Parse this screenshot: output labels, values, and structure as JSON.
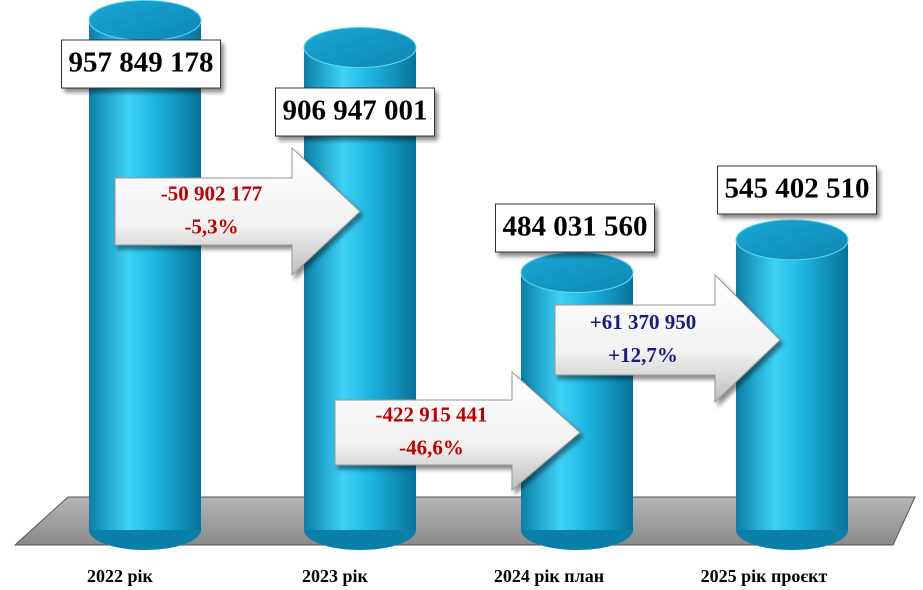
{
  "chart_data": {
    "type": "bar3d",
    "categories": [
      "2022 рік",
      "2023 рік",
      "2024 рік план",
      "2025 рік проєкт"
    ],
    "values": [
      957849178,
      906947001,
      484031560,
      545402510
    ],
    "value_labels": [
      "957 849 178",
      "906 947 001",
      "484 031 560",
      "545 402 510"
    ],
    "color": "#1cb4e0",
    "annotations": [
      {
        "lines": [
          "-50 902 177",
          "-5,3%"
        ],
        "color": "#c00000"
      },
      {
        "lines": [
          "-422 915 441",
          "-46,6%"
        ],
        "color": "#c00000"
      },
      {
        "lines": [
          "+61 370 950",
          "+12,7%"
        ],
        "color": "#1a1a80"
      }
    ]
  }
}
